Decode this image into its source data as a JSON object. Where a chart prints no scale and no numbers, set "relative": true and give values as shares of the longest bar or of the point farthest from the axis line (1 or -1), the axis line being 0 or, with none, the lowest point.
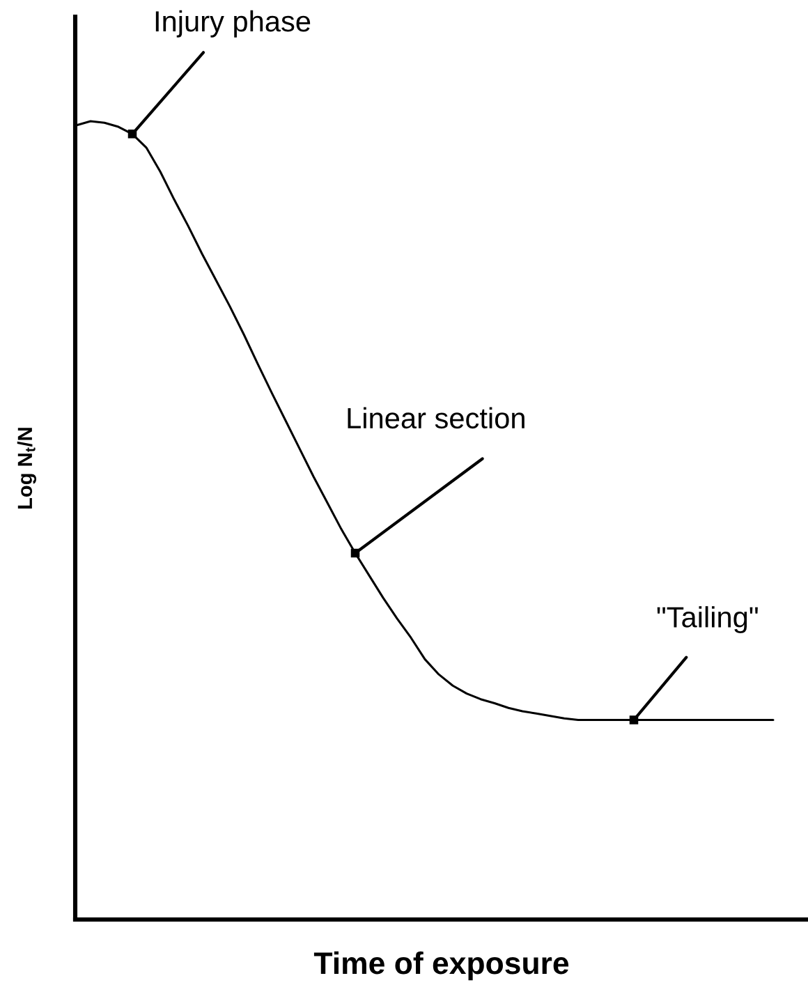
{
  "chart_data": {
    "type": "line",
    "relative": true,
    "xlabel": "Time of exposure",
    "ylabel": "Log N$_{t}$/N",
    "categories": [
      null,
      null,
      null,
      null,
      null,
      null,
      null,
      null,
      null,
      null,
      null,
      null,
      null,
      null,
      null,
      null,
      null,
      null,
      null,
      null,
      null,
      null,
      null,
      null,
      null,
      null,
      null,
      null,
      null,
      null,
      null,
      null,
      null,
      null,
      null,
      null,
      null,
      null,
      null,
      null,
      null,
      null,
      null,
      null,
      null,
      null,
      null,
      null,
      null,
      null,
      null
    ],
    "series": [
      {
        "color": "#000000",
        "values": [
          0.995,
          1.0,
          0.998,
          0.993,
          0.984,
          0.967,
          0.937,
          0.902,
          0.869,
          0.834,
          0.801,
          0.768,
          0.733,
          0.696,
          0.66,
          0.625,
          0.59,
          0.555,
          0.522,
          0.489,
          0.459,
          0.431,
          0.403,
          0.377,
          0.353,
          0.326,
          0.307,
          0.293,
          0.283,
          0.276,
          0.271,
          0.265,
          0.261,
          0.258,
          0.255,
          0.252,
          0.25,
          0.25,
          0.25,
          0.25,
          0.25,
          0.25,
          0.25,
          0.25,
          0.25,
          0.25,
          0.25,
          0.25,
          0.25,
          0.25,
          0.25
        ]
      }
    ],
    "annotations": [
      "Injury phase",
      "Linear section",
      "\"Tailing\""
    ],
    "line_style": "solid"
  }
}
